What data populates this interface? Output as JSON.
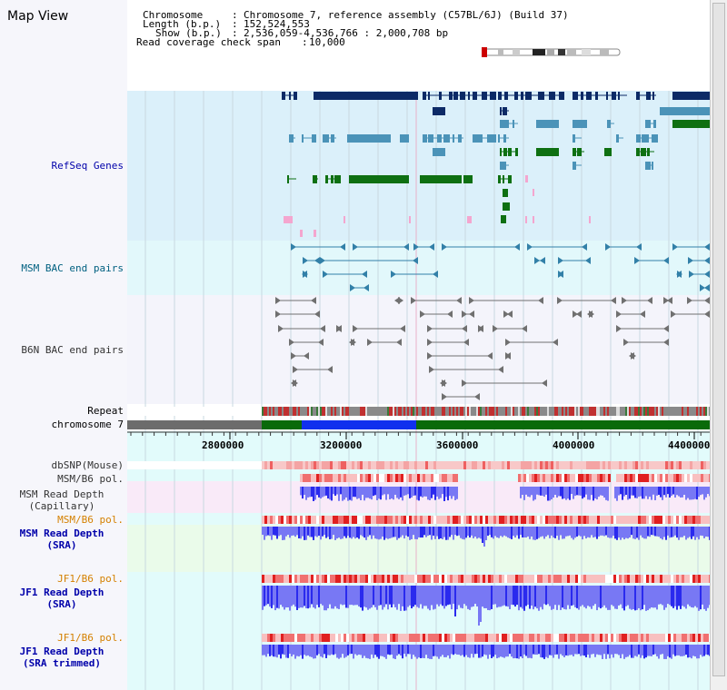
{
  "page": {
    "title": "Map View"
  },
  "header": {
    "chromosome_label": "Chromosome",
    "chromosome_value": "Chromosome 7, reference assembly (C57BL/6J) (Build 37)",
    "length_label": "Length (b.p.)",
    "length_value": "152,524,553",
    "show_label": "Show (b.p.)",
    "show_value": "2,536,059-4,536,766 : 2,000,708 bp",
    "coverage_label": "Read coverage check span",
    "coverage_value": "10,000"
  },
  "tracks": {
    "refseq": "RefSeq Genes",
    "msm_bac": "MSM BAC end pairs",
    "b6n_bac": "B6N BAC end pairs",
    "repeat": "Repeat",
    "chromosome": "chromosome 7",
    "dbsnp": "dbSNP(Mouse)",
    "msm_b6_pol": "MSM/B6 pol.",
    "msm_depth_cap_1": "MSM Read Depth",
    "msm_depth_cap_2": "(Capillary)",
    "msm_b6_pol_2": "MSM/B6 pol.",
    "msm_depth_sra_1": "MSM Read Depth",
    "msm_depth_sra_2": "(SRA)",
    "jf1_b6_pol": "JF1/B6 pol.",
    "jf1_depth_sra_1": "JF1 Read Depth",
    "jf1_depth_sra_2": "(SRA)",
    "jf1_b6_pol_2": "JF1/B6 pol.",
    "jf1_depth_trim_1": "JF1 Read Depth",
    "jf1_depth_trim_2": "(SRA trimmed)"
  },
  "axis": {
    "ticks": [
      "2800000",
      "3200000",
      "3600000",
      "4000000",
      "4400000"
    ]
  },
  "colors": {
    "refseq_bg": "#dbf0fa",
    "msm_bg": "#e2f8fb",
    "b6n_bg": "#f4f4fb",
    "lower_bg": "#e2fbfb",
    "navy": "#0c2a66",
    "steel": "#4b93b8",
    "green": "#0e7012",
    "pink": "#f4a6cf",
    "label_blue": "#0000aa",
    "label_teal": "#006080",
    "label_orange": "#d48000"
  }
}
